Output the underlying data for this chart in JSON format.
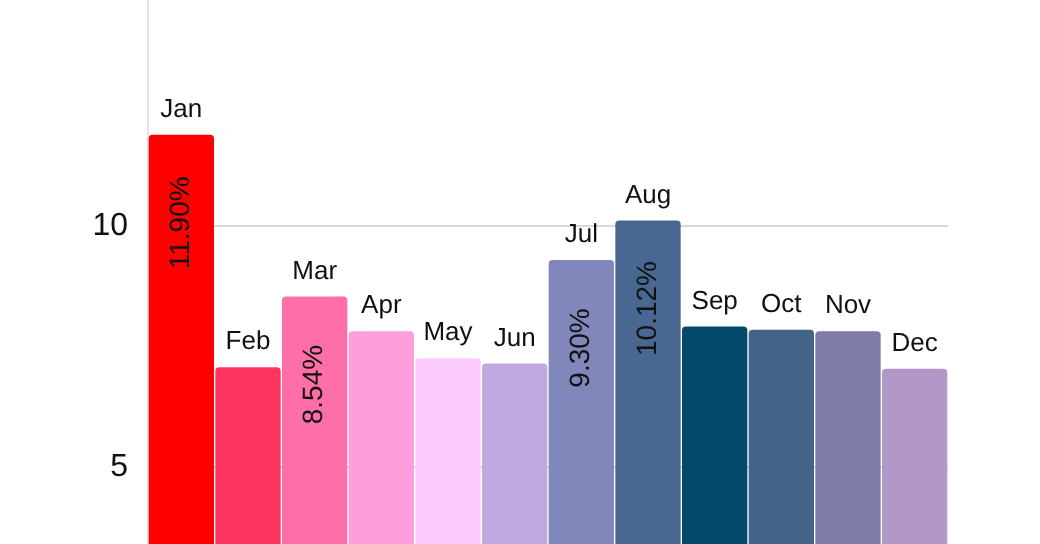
{
  "chart_data": {
    "type": "bar",
    "categories": [
      "Jan",
      "Feb",
      "Mar",
      "Apr",
      "May",
      "Jun",
      "Jul",
      "Aug",
      "Sep",
      "Oct",
      "Nov",
      "Dec"
    ],
    "values": [
      11.9,
      7.07,
      8.54,
      7.82,
      7.26,
      7.15,
      9.3,
      10.12,
      7.92,
      7.85,
      7.82,
      7.04
    ],
    "colors": [
      "#fe0000",
      "#fe3360",
      "#fe6fa8",
      "#fe9fdc",
      "#fdcafd",
      "#c0a8e0",
      "#8187ba",
      "#486892",
      "#034a6a",
      "#456389",
      "#7e7ca8",
      "#b298c6"
    ],
    "value_labels": [
      "11.90%",
      null,
      "8.54%",
      null,
      null,
      null,
      "9.30%",
      "10.12%",
      null,
      null,
      null,
      null
    ],
    "ylim": [
      3.4,
      14.7
    ],
    "yticks": [
      5,
      10
    ],
    "grid": "y"
  }
}
